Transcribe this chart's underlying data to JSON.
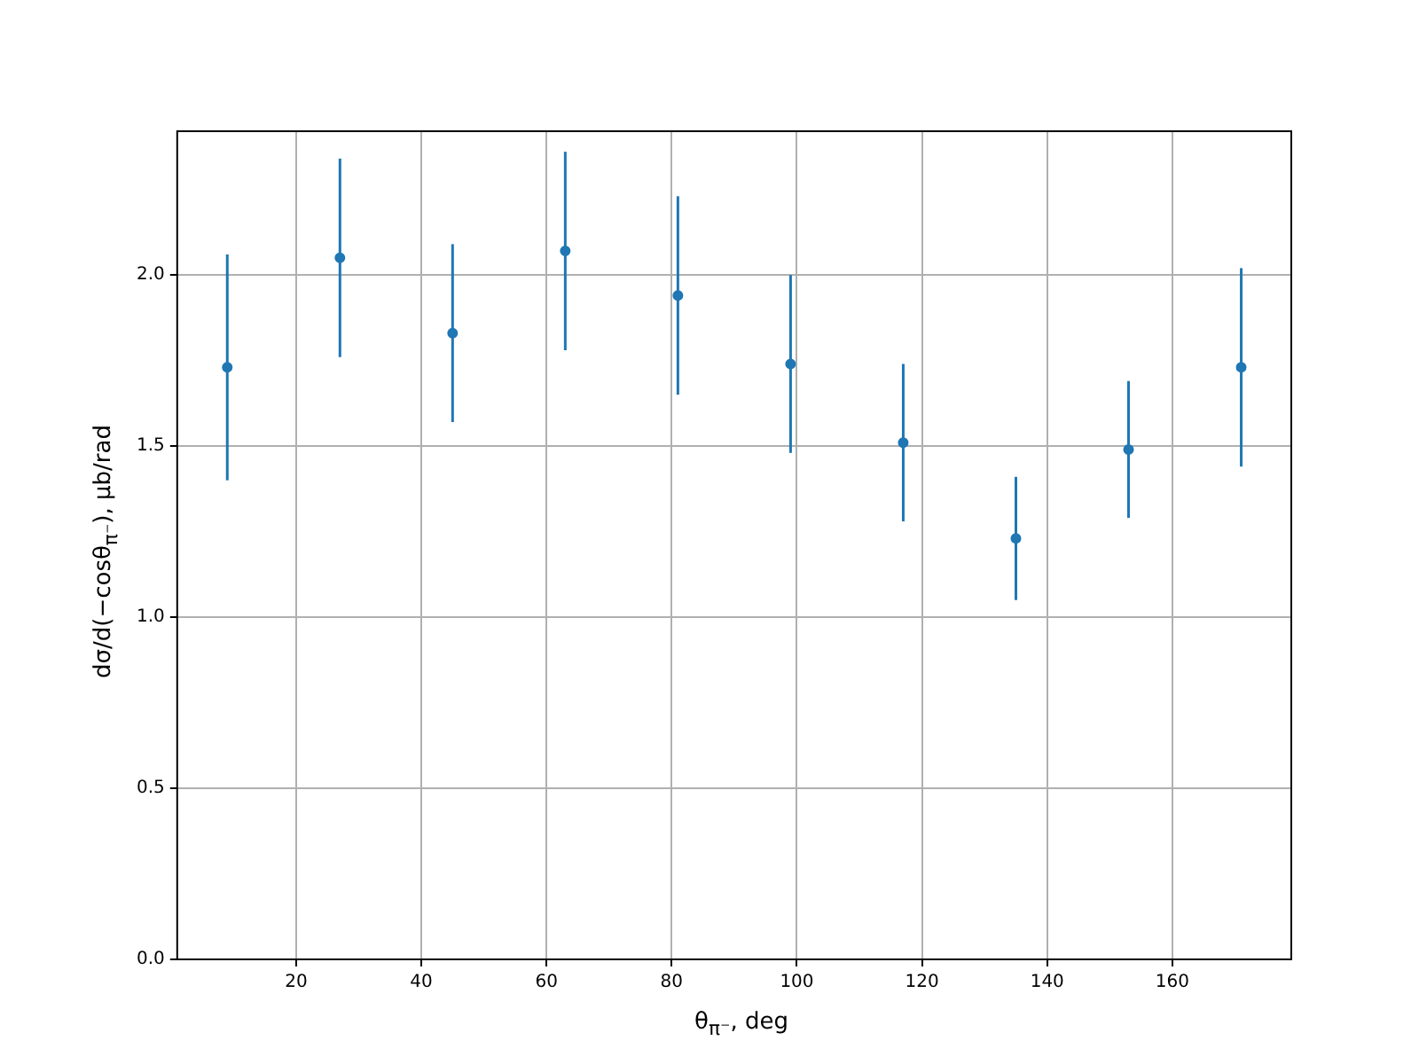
{
  "chart_data": {
    "type": "scatter",
    "xlabel": "θ$_{π⁻}$, deg",
    "ylabel": "dσ/d(−cosθ$_{π⁻}$), μb/rad",
    "x": [
      9,
      27,
      45,
      63,
      81,
      99,
      117,
      135,
      153,
      171
    ],
    "series": [
      {
        "color": "#1f77b4",
        "values": [
          1.73,
          2.05,
          1.83,
          2.07,
          1.94,
          1.74,
          1.51,
          1.23,
          1.49,
          1.73
        ],
        "errors": [
          0.33,
          0.29,
          0.26,
          0.29,
          0.29,
          0.26,
          0.23,
          0.18,
          0.2,
          0.29
        ]
      }
    ],
    "xlim": [
      1,
      179
    ],
    "xticks": [
      20,
      40,
      60,
      80,
      100,
      120,
      140,
      160
    ],
    "ylim": [
      0,
      2.42
    ],
    "yticks": [
      {
        "value": 0,
        "label": "0.0"
      },
      0.5,
      {
        "value": 1,
        "label": "1.0"
      },
      1.5,
      {
        "value": 2,
        "label": "2.0"
      }
    ],
    "grid": true,
    "marker": "circle",
    "legend": false
  }
}
